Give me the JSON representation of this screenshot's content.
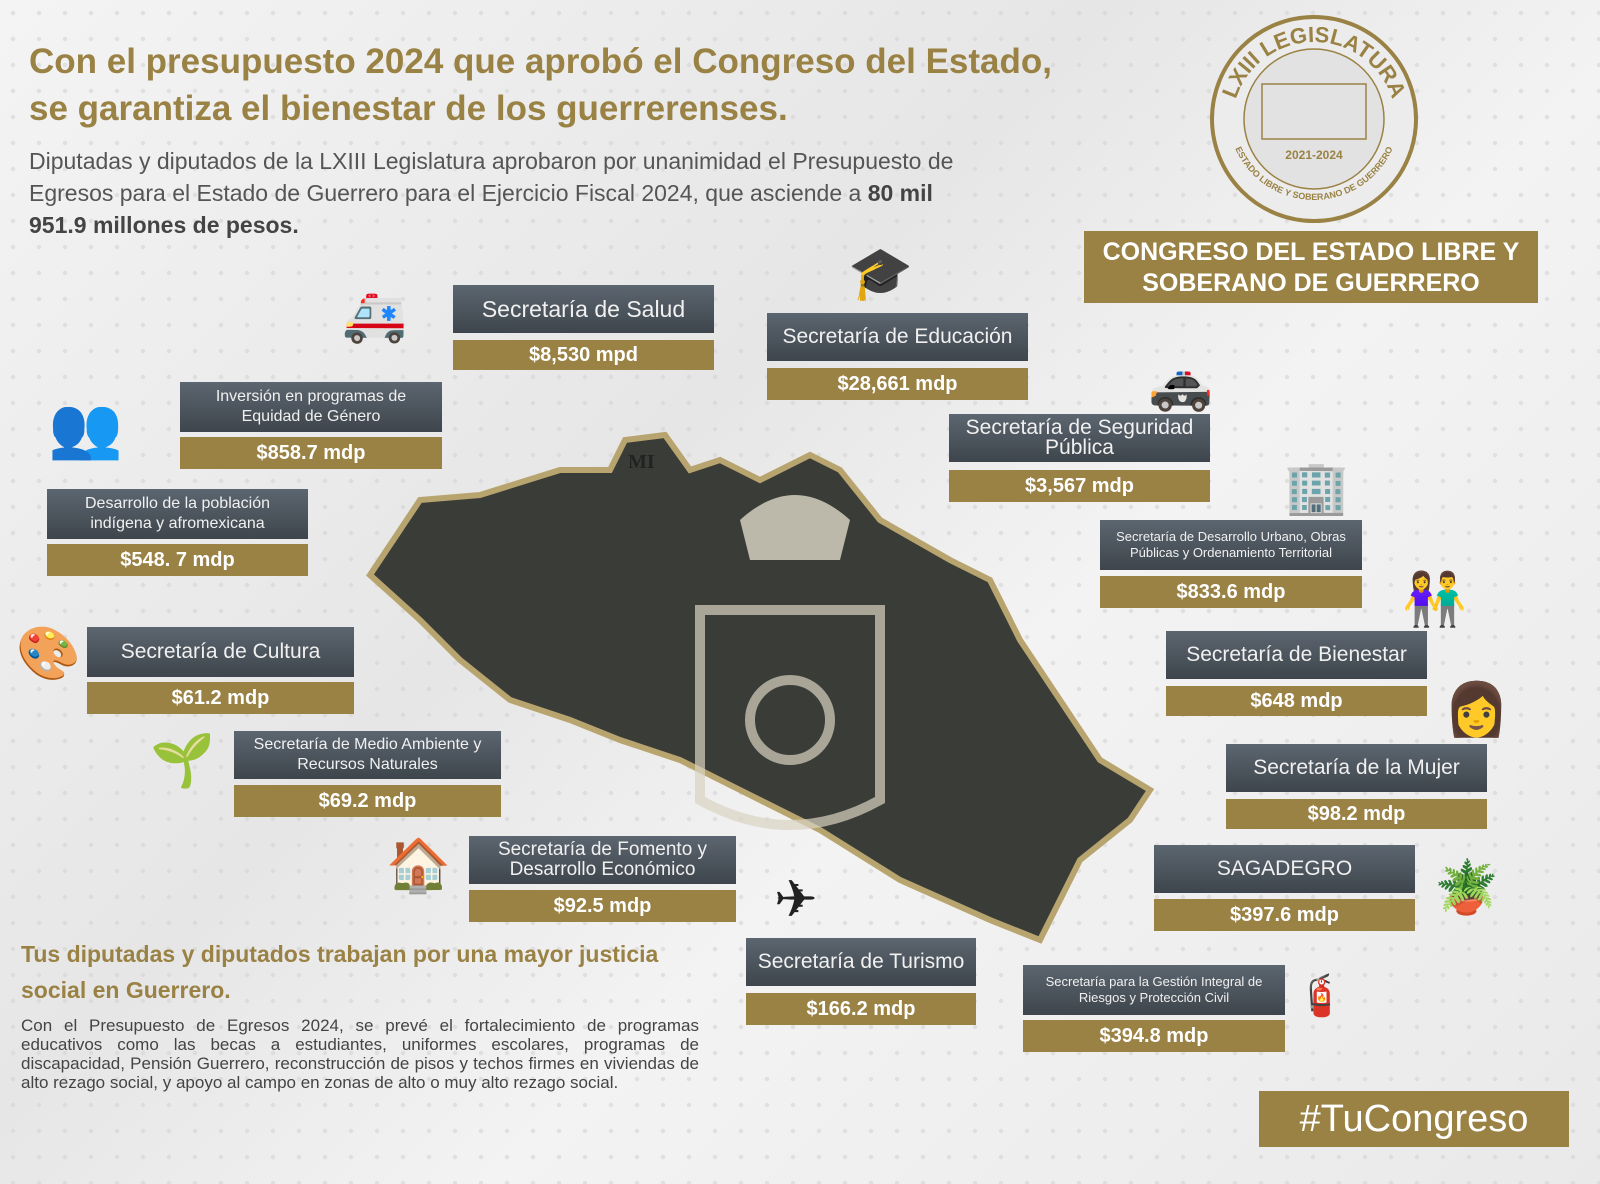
{
  "headline": "Con el presupuesto 2024 que aprobó el Congreso del Estado, se garantiza el bienestar de los guerrerenses.",
  "intro": {
    "text": "Diputadas y diputados de la LXIII Legislatura aprobaron por unanimidad el Presupuesto de Egresos para el Estado de Guerrero para el Ejercicio Fiscal 2024, que asciende a ",
    "amount": "80 mil 951.9 millones de pesos."
  },
  "seal": {
    "top": "LXIII LEGISLATURA",
    "years": "2021-2024",
    "bottom": "ESTADO LIBRE Y SOBERANO DE GUERRERO"
  },
  "congreso": "CONGRESO DEL ESTADO LIBRE Y SOBERANO DE GUERRERO",
  "map_text": "MI",
  "cards": [
    {
      "label": "Secretaría de Salud",
      "value": "$8,530 mpd",
      "icon": "ambulance-icon"
    },
    {
      "label": "Secretaría de Educación",
      "value": "$28,661 mdp",
      "icon": "graduation-cap-icon"
    },
    {
      "label": "Inversión en programas de Equidad de Género",
      "value": "$858.7 mdp",
      "icon": "people-group-icon"
    },
    {
      "label": "Secretaría de Seguridad Pública",
      "value": "$3,567 mdp",
      "icon": "police-car-icon"
    },
    {
      "label": "Desarrollo de la población indígena y afromexicana",
      "value": "$548. 7 mdp",
      "icon": ""
    },
    {
      "label": "Secretaría de Desarrollo Urbano, Obras Públicas y Ordenamiento Territorial",
      "value": "$833.6 mdp",
      "icon": "buildings-icon"
    },
    {
      "label": "Secretaría de Cultura",
      "value": "$61.2 mdp",
      "icon": "palette-icon"
    },
    {
      "label": "Secretaría de Bienestar",
      "value": "$648 mdp",
      "icon": "people-heart-icon"
    },
    {
      "label": "Secretaría de Medio Ambiente y Recursos Naturales",
      "value": "$69.2 mdp",
      "icon": "hand-leaf-icon"
    },
    {
      "label": "Secretaría de la Mujer",
      "value": "$98.2 mdp",
      "icon": "woman-icon"
    },
    {
      "label": "SAGADEGRO",
      "value": "$397.6 mdp",
      "icon": "plant-pot-icon"
    },
    {
      "label": "Secretaría de Fomento y Desarrollo Económico",
      "value": "$92.5 mdp",
      "icon": "hand-house-icon"
    },
    {
      "label": "Secretaría de Turismo",
      "value": "$166.2 mdp",
      "icon": "airplane-icon"
    },
    {
      "label": "Secretaría para la Gestión Integral de Riesgos y Protección Civil",
      "value": "$394.8 mdp",
      "icon": "fire-extinguisher-icon"
    }
  ],
  "bottom": {
    "title": "Tus diputadas y diputados trabajan por una mayor justicia social en Guerrero.",
    "text": "Con el Presupuesto de Egresos 2024, se prevé el fortalecimiento de programas educativos como las becas a estudiantes, uniformes escolares, programas de discapacidad, Pensión Guerrero, reconstrucción de pisos y techos firmes en viviendas de alto rezago social, y apoyo al campo en zonas de alto o muy alto rezago social."
  },
  "hashtag": "#TuCongreso",
  "colors": {
    "gold": "#9a8245",
    "slate": "#4a5259"
  }
}
